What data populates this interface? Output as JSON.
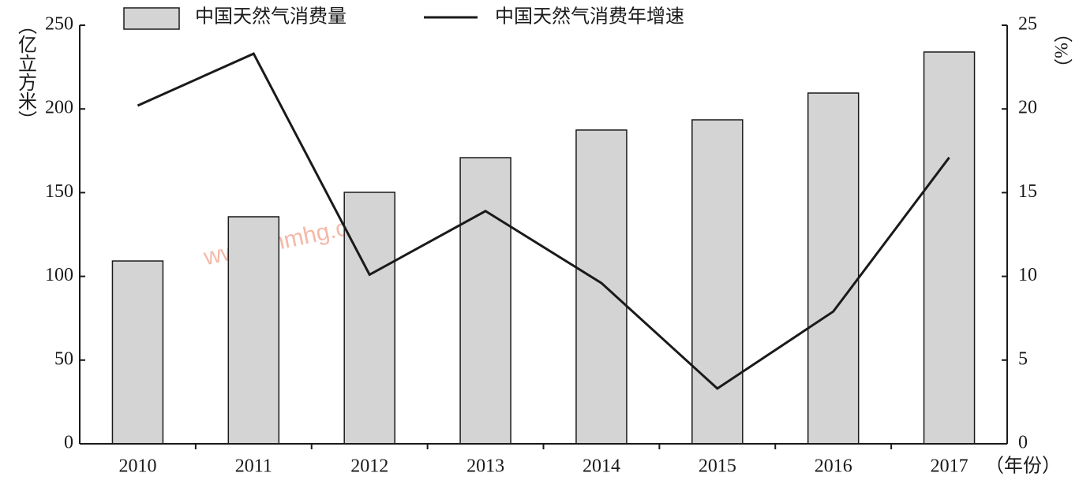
{
  "chart_data": {
    "type": "bar",
    "categories": [
      "2010",
      "2011",
      "2012",
      "2013",
      "2014",
      "2015",
      "2016",
      "2017"
    ],
    "series": [
      {
        "name": "中国天然气消费量",
        "type": "bar",
        "color": "#d4d4d4",
        "values": [
          109.2,
          135.6,
          150.2,
          170.9,
          187.4,
          193.5,
          209.5,
          234.0
        ]
      },
      {
        "name": "中国天然气消费年增速",
        "type": "line",
        "axis": "y2",
        "color": "#1a1a1a",
        "values": [
          20.2,
          23.3,
          10.1,
          13.9,
          9.6,
          3.3,
          7.9,
          17.1
        ]
      }
    ],
    "ylabel": "（亿立方米）",
    "y2label": "（%）",
    "xlabel": "（年份）",
    "ylim": [
      0,
      250
    ],
    "yticks": [
      0,
      50,
      100,
      150,
      200,
      250
    ],
    "y2lim": [
      0,
      25
    ],
    "y2ticks": [
      0,
      5,
      10,
      15,
      20,
      25
    ],
    "watermark": "www.cnmhg.com"
  }
}
